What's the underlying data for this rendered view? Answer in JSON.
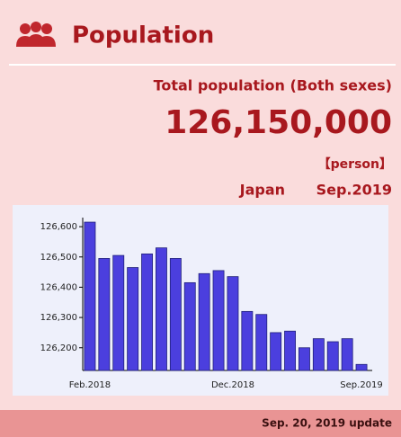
{
  "header": {
    "title": "Population"
  },
  "stats": {
    "label": "Total population (Both sexes)",
    "value": "126,150,000",
    "unit": "【person】",
    "region": "Japan",
    "period": "Sep.2019"
  },
  "chart_data": {
    "type": "bar",
    "categories": [
      "Feb.2018",
      null,
      null,
      null,
      null,
      null,
      null,
      null,
      null,
      null,
      "Dec.2018",
      null,
      null,
      null,
      null,
      null,
      null,
      null,
      null,
      "Sep.2019"
    ],
    "values": [
      126615,
      126495,
      126505,
      126465,
      126510,
      126530,
      126495,
      126415,
      126445,
      126455,
      126435,
      126320,
      126310,
      126250,
      126255,
      126200,
      126230,
      126220,
      126230,
      126145
    ],
    "color": "#4b3fde",
    "ylim": [
      126125,
      126630
    ],
    "yticks": [
      {
        "value": 126200,
        "label": "126,200"
      },
      {
        "value": 126300,
        "label": "126,300"
      },
      {
        "value": 126400,
        "label": "126,400"
      },
      {
        "value": 126500,
        "label": "126,500"
      },
      {
        "value": 126600,
        "label": "126,600"
      }
    ]
  },
  "footer": {
    "update": "Sep. 20, 2019 update"
  }
}
